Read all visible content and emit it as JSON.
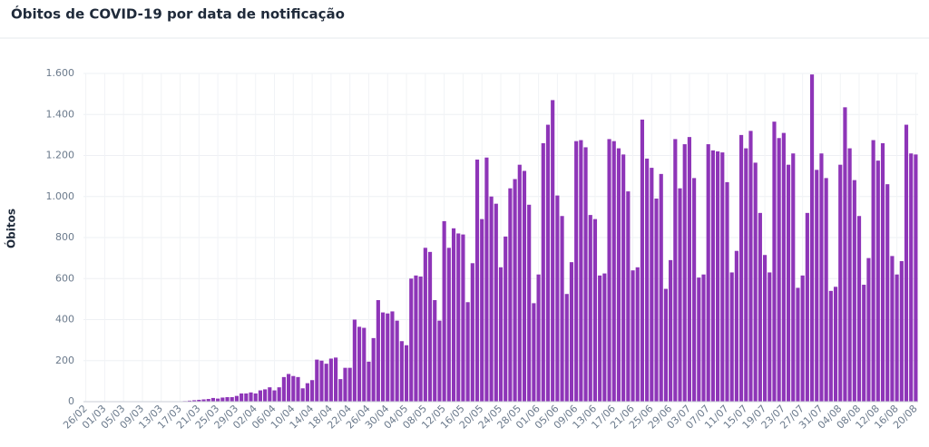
{
  "chart_data": {
    "type": "bar",
    "title": "Óbitos de COVID-19 por data de notificação",
    "y_label": "Óbitos",
    "color": "#8e35b8",
    "grid": true,
    "ylim": [
      0,
      1600
    ],
    "yticks": [
      0,
      200,
      400,
      600,
      800,
      {
        "value": 1000,
        "label": "1.000"
      },
      {
        "value": 1200,
        "label": "1.200"
      },
      {
        "value": 1400,
        "label": "1.400"
      },
      {
        "value": 1600,
        "label": "1.600"
      }
    ],
    "categories": [
      "26/02",
      null,
      null,
      null,
      "01/03",
      null,
      null,
      null,
      "05/03",
      null,
      null,
      null,
      "09/03",
      null,
      null,
      null,
      "13/03",
      null,
      null,
      null,
      "17/03",
      null,
      null,
      null,
      "21/03",
      null,
      null,
      null,
      "25/03",
      null,
      null,
      null,
      "29/03",
      null,
      null,
      null,
      "02/04",
      null,
      null,
      null,
      "06/04",
      null,
      null,
      null,
      "10/04",
      null,
      null,
      null,
      "14/04",
      null,
      null,
      null,
      "18/04",
      null,
      null,
      null,
      "22/04",
      null,
      null,
      null,
      "26/04",
      null,
      null,
      null,
      "30/04",
      null,
      null,
      null,
      "04/05",
      null,
      null,
      null,
      "08/05",
      null,
      null,
      null,
      "12/05",
      null,
      null,
      null,
      "16/05",
      null,
      null,
      null,
      "20/05",
      null,
      null,
      null,
      "24/05",
      null,
      null,
      null,
      "28/05",
      null,
      null,
      null,
      "01/06",
      null,
      null,
      null,
      "05/06",
      null,
      null,
      null,
      "09/06",
      null,
      null,
      null,
      "13/06",
      null,
      null,
      null,
      "17/06",
      null,
      null,
      null,
      "21/06",
      null,
      null,
      null,
      "25/06",
      null,
      null,
      null,
      "29/06",
      null,
      null,
      null,
      "03/07",
      null,
      null,
      null,
      "07/07",
      null,
      null,
      null,
      "11/07",
      null,
      null,
      null,
      "15/07",
      null,
      null,
      null,
      "19/07",
      null,
      null,
      null,
      "23/07",
      null,
      null,
      null,
      "27/07",
      null,
      null,
      null,
      "31/07",
      null,
      null,
      null,
      "04/08",
      null,
      null,
      null,
      "08/08",
      null,
      null,
      null,
      "12/08",
      null,
      null,
      null,
      "16/08",
      null,
      null,
      null,
      "20/08"
    ],
    "values": [
      0,
      0,
      0,
      0,
      0,
      0,
      0,
      0,
      0,
      0,
      0,
      0,
      0,
      0,
      0,
      0,
      0,
      0,
      0,
      0,
      1,
      3,
      5,
      7,
      9,
      11,
      13,
      18,
      15,
      20,
      22,
      22,
      28,
      40,
      40,
      45,
      40,
      55,
      60,
      70,
      55,
      70,
      120,
      135,
      125,
      120,
      65,
      90,
      105,
      205,
      200,
      185,
      210,
      215,
      110,
      165,
      165,
      400,
      365,
      360,
      195,
      310,
      495,
      435,
      430,
      440,
      395,
      295,
      275,
      600,
      615,
      610,
      750,
      730,
      495,
      395,
      880,
      750,
      845,
      820,
      815,
      485,
      675,
      1180,
      890,
      1190,
      1000,
      965,
      655,
      805,
      1040,
      1085,
      1155,
      1125,
      960,
      480,
      620,
      1260,
      1350,
      1470,
      1005,
      905,
      525,
      680,
      1270,
      1275,
      1240,
      910,
      890,
      615,
      625,
      1280,
      1270,
      1235,
      1205,
      1025,
      640,
      655,
      1375,
      1185,
      1140,
      990,
      1110,
      550,
      690,
      1280,
      1040,
      1255,
      1290,
      1090,
      605,
      620,
      1255,
      1225,
      1220,
      1215,
      1070,
      630,
      735,
      1300,
      1235,
      1320,
      1165,
      920,
      715,
      630,
      1365,
      1285,
      1310,
      1155,
      1210,
      555,
      615,
      920,
      1595,
      1130,
      1210,
      1090,
      540,
      560,
      1155,
      1435,
      1235,
      1080,
      905,
      570,
      700,
      1275,
      1175,
      1260,
      1060,
      710,
      620,
      685,
      1350,
      1210,
      1205
    ]
  }
}
